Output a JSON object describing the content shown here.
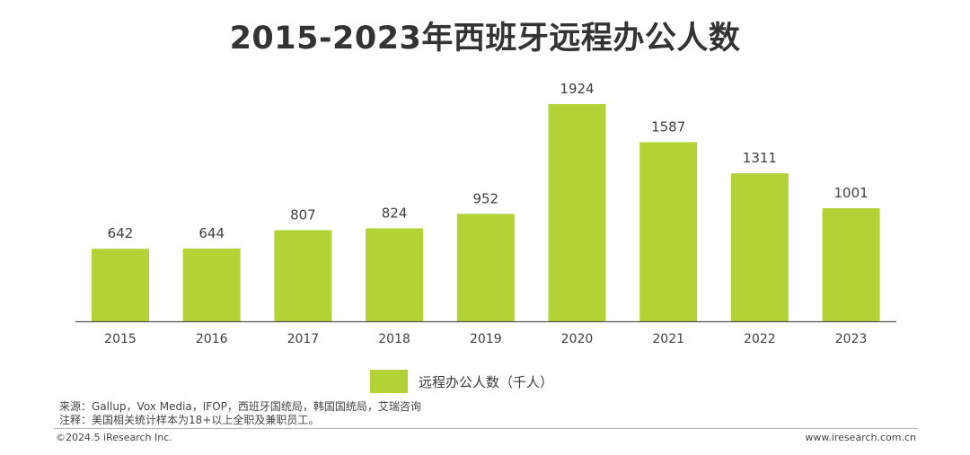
{
  "chart_data": {
    "type": "bar",
    "title": "2015-2023年西班牙远程办公人数",
    "categories": [
      "2015",
      "2016",
      "2017",
      "2018",
      "2019",
      "2020",
      "2021",
      "2022",
      "2023"
    ],
    "series": [
      {
        "name": "远程办公人数（千人）",
        "values": [
          642,
          644,
          807,
          824,
          952,
          1924,
          1587,
          1311,
          1001
        ]
      }
    ],
    "value_labels": [
      "642",
      "644",
      "807",
      "824",
      "952",
      "1924",
      "1587",
      "1311",
      "1001"
    ],
    "xlabel": "",
    "ylabel": "",
    "ylim": [
      0,
      1924
    ],
    "grid": false,
    "legend_position": "bottom-center",
    "bar_color": "#b2d235",
    "label_color": "#404040",
    "axis_color": "#555555"
  },
  "notes": {
    "source": "来源：Gallup，Vox Media，IFOP，西班牙国统局，韩国国统局，艾瑞咨询",
    "footnote": "注释：美国相关统计样本为18+以上全职及兼职员工。"
  },
  "footer": {
    "copyright": "©2024.5 iResearch Inc.",
    "website": "www.iresearch.com.cn"
  }
}
